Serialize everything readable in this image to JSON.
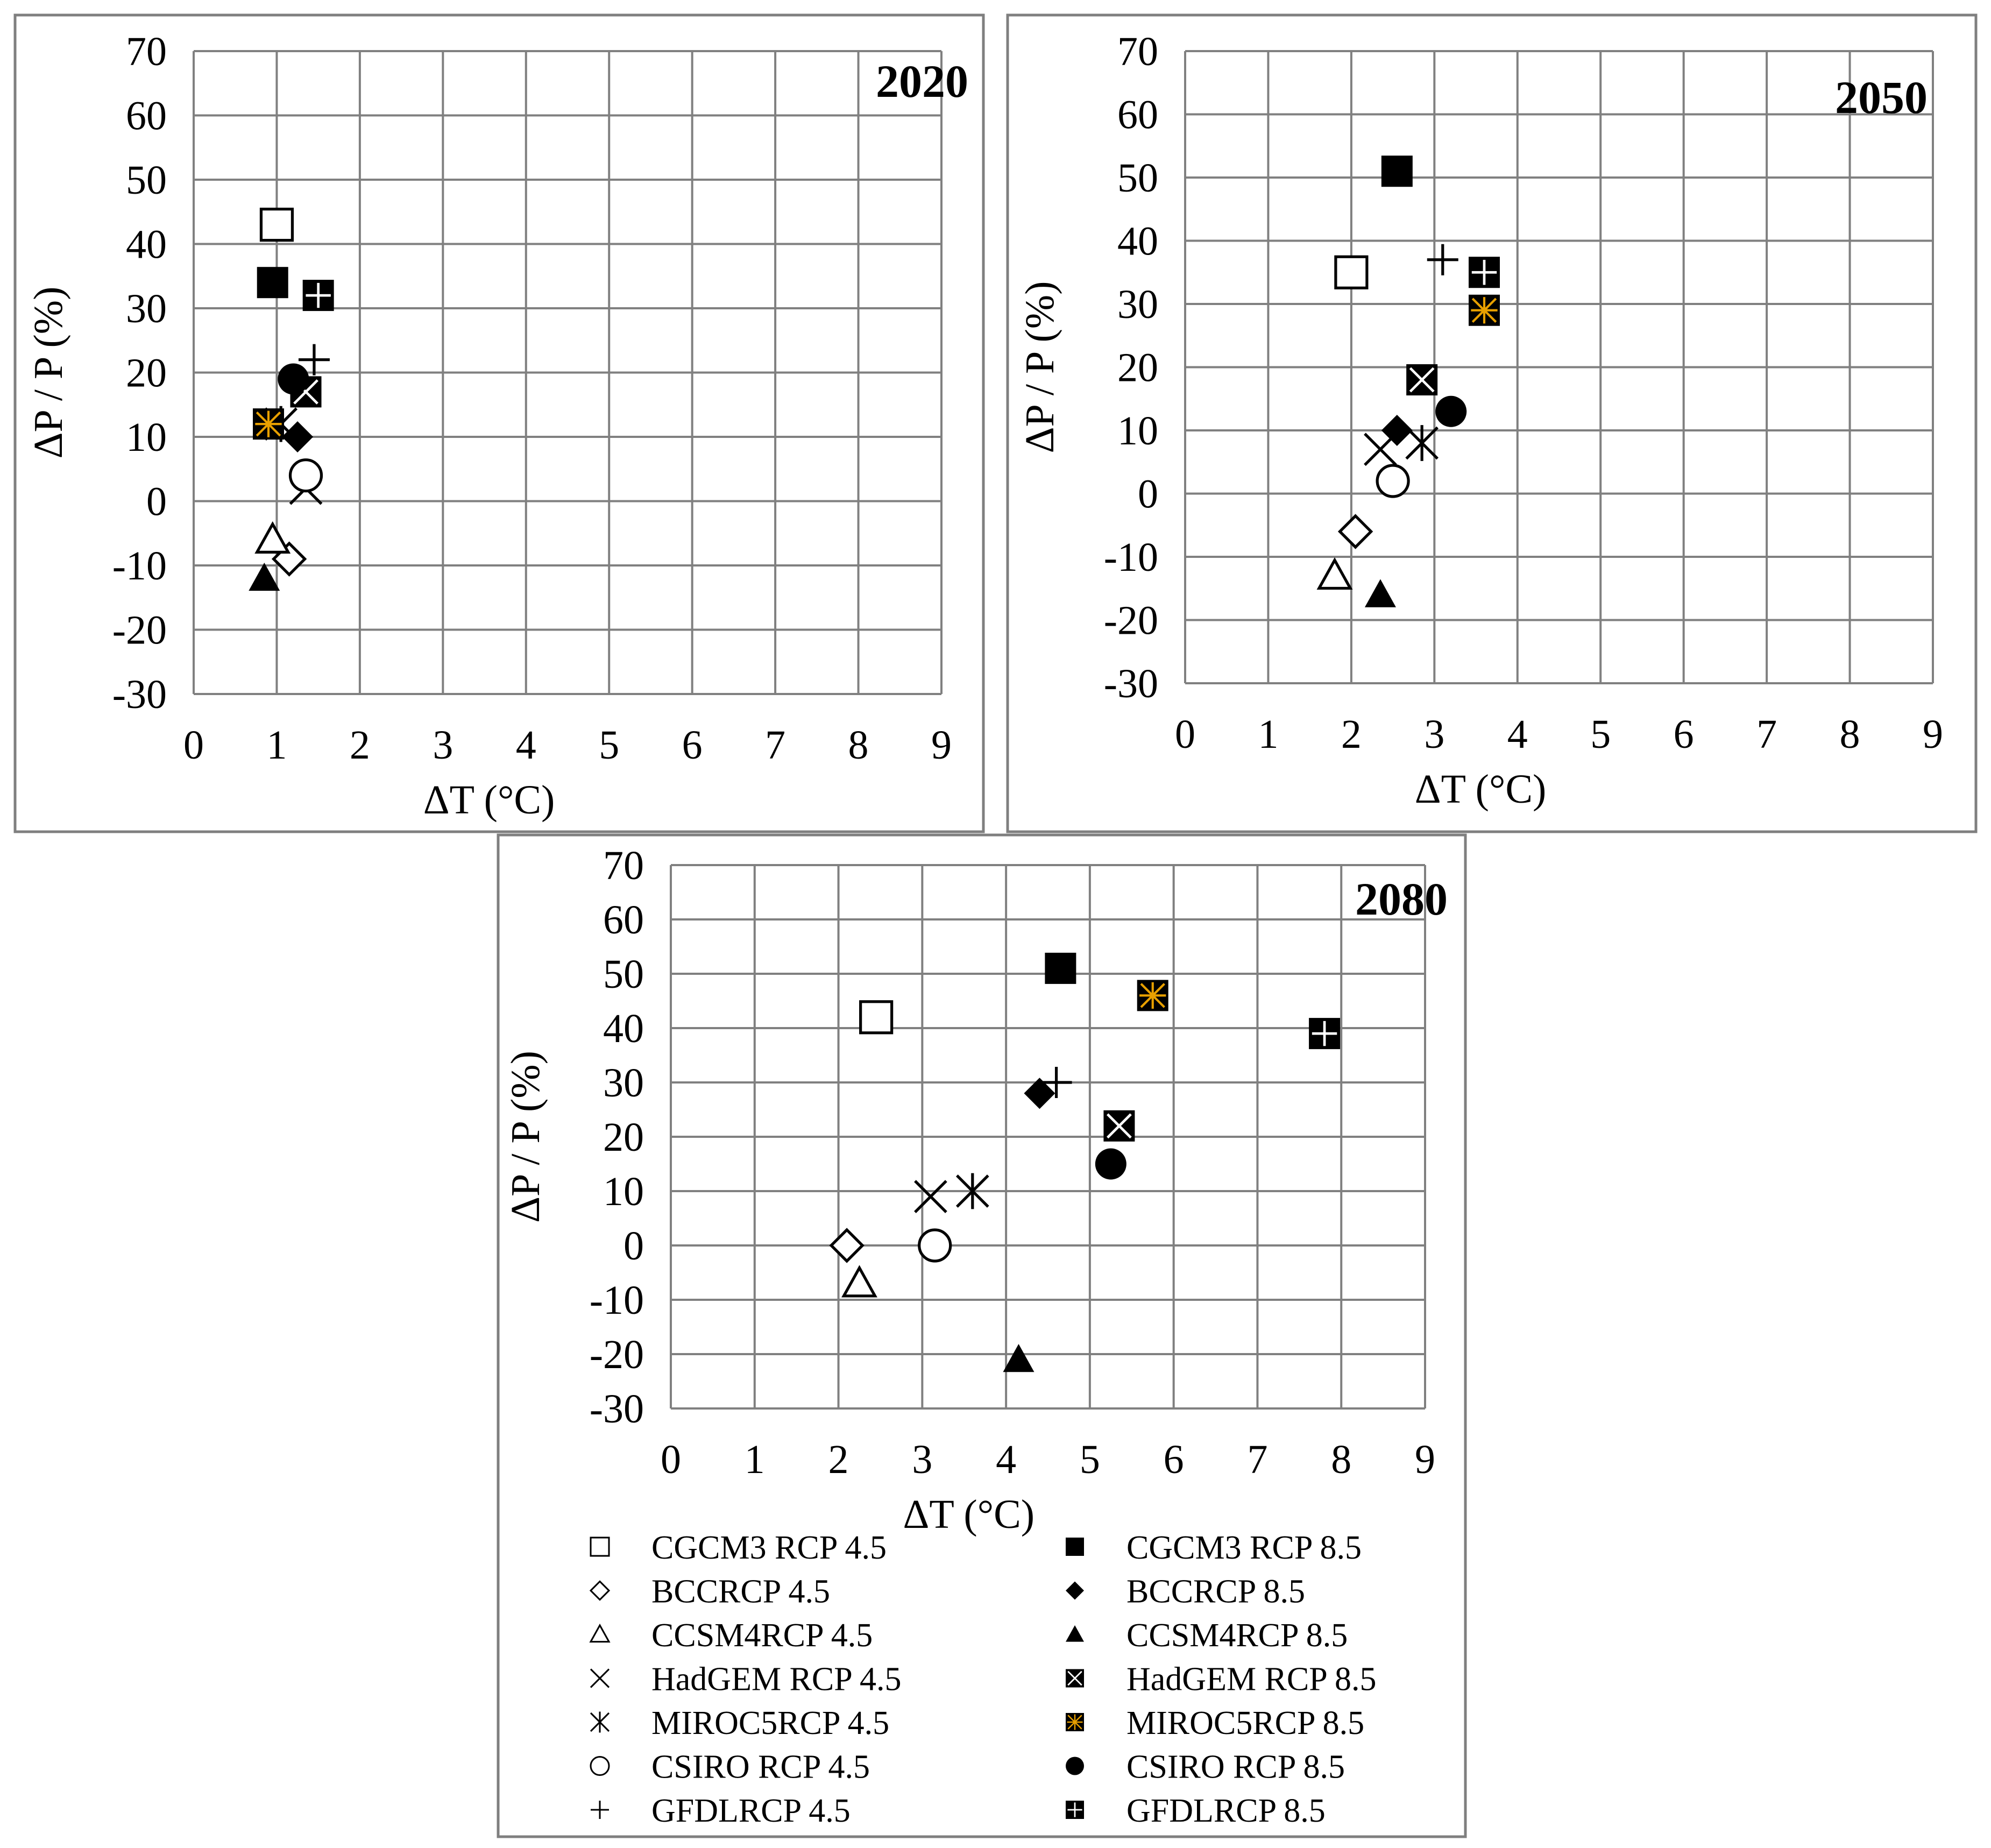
{
  "chart_data": [
    {
      "type": "scatter",
      "title": "2020",
      "xlabel": "ΔT (°C)",
      "ylabel": "ΔP / P (%)",
      "xlim": [
        0,
        9
      ],
      "ylim": [
        -30,
        70
      ],
      "xticks": [
        "0",
        "1",
        "2",
        "3",
        "4",
        "5",
        "6",
        "7",
        "8",
        "9"
      ],
      "yticks": [
        "70",
        "60",
        "50",
        "40",
        "30",
        "20",
        "10",
        "0",
        "-10",
        "-20",
        "-30"
      ],
      "grid": true,
      "series": [
        {
          "name": "CGCM3 RCP 4.5",
          "x": 1.0,
          "y": 43
        },
        {
          "name": "CGCM3 RCP 8.5",
          "x": 0.95,
          "y": 34
        },
        {
          "name": "BCCRCP 4.5",
          "x": 1.15,
          "y": -9
        },
        {
          "name": "BCCRCP 8.5",
          "x": 1.25,
          "y": 10
        },
        {
          "name": "CCSM4RCP 4.5",
          "x": 0.95,
          "y": -6
        },
        {
          "name": "CCSM4RCP 8.5",
          "x": 0.85,
          "y": -12
        },
        {
          "name": "HadGEM RCP 4.5",
          "x": 1.35,
          "y": 2
        },
        {
          "name": "HadGEM RCP 8.5",
          "x": 1.35,
          "y": 17
        },
        {
          "name": "MIROC5RCP 4.5",
          "x": 1.05,
          "y": 12
        },
        {
          "name": "MIROC5RCP 8.5",
          "x": 0.9,
          "y": 12
        },
        {
          "name": "CSIRO RCP 4.5",
          "x": 1.35,
          "y": 4
        },
        {
          "name": "CSIRO RCP 8.5",
          "x": 1.2,
          "y": 19
        },
        {
          "name": "GFDLRCP 4.5",
          "x": 1.45,
          "y": 22
        },
        {
          "name": "GFDLRCP 8.5",
          "x": 1.5,
          "y": 32
        }
      ]
    },
    {
      "type": "scatter",
      "title": "2050",
      "xlabel": "ΔT (°C)",
      "ylabel": "ΔP / P (%)",
      "xlim": [
        0,
        9
      ],
      "ylim": [
        -30,
        70
      ],
      "xticks": [
        "0",
        "1",
        "2",
        "3",
        "4",
        "5",
        "6",
        "7",
        "8",
        "9"
      ],
      "yticks": [
        "70",
        "60",
        "50",
        "40",
        "30",
        "20",
        "10",
        "0",
        "-10",
        "-20",
        "-30"
      ],
      "grid": true,
      "series": [
        {
          "name": "CGCM3 RCP 4.5",
          "x": 2.0,
          "y": 35
        },
        {
          "name": "CGCM3 RCP 8.5",
          "x": 2.55,
          "y": 51
        },
        {
          "name": "BCCRCP 4.5",
          "x": 2.05,
          "y": -6
        },
        {
          "name": "BCCRCP 8.5",
          "x": 2.55,
          "y": 10
        },
        {
          "name": "CCSM4RCP 4.5",
          "x": 1.8,
          "y": -13
        },
        {
          "name": "CCSM4RCP 8.5",
          "x": 2.35,
          "y": -16
        },
        {
          "name": "HadGEM RCP 4.5",
          "x": 2.35,
          "y": 7
        },
        {
          "name": "HadGEM RCP 8.5",
          "x": 2.85,
          "y": 18
        },
        {
          "name": "MIROC5RCP 4.5",
          "x": 2.85,
          "y": 8
        },
        {
          "name": "MIROC5RCP 8.5",
          "x": 3.6,
          "y": 29
        },
        {
          "name": "CSIRO RCP 4.5",
          "x": 2.5,
          "y": 2
        },
        {
          "name": "CSIRO RCP 8.5",
          "x": 3.2,
          "y": 13
        },
        {
          "name": "GFDLRCP 4.5",
          "x": 3.1,
          "y": 37
        },
        {
          "name": "GFDLRCP 8.5",
          "x": 3.6,
          "y": 35
        }
      ]
    },
    {
      "type": "scatter",
      "title": "2080",
      "xlabel": "ΔT (°C)",
      "ylabel": "ΔP / P (%)",
      "xlim": [
        0,
        9
      ],
      "ylim": [
        -30,
        70
      ],
      "xticks": [
        "0",
        "1",
        "2",
        "3",
        "4",
        "5",
        "6",
        "7",
        "8",
        "9"
      ],
      "yticks": [
        "70",
        "60",
        "50",
        "40",
        "30",
        "20",
        "10",
        "0",
        "-10",
        "-20",
        "-30"
      ],
      "grid": true,
      "series": [
        {
          "name": "CGCM3 RCP 4.5",
          "x": 2.45,
          "y": 42
        },
        {
          "name": "CGCM3 RCP 8.5",
          "x": 4.65,
          "y": 51
        },
        {
          "name": "BCCRCP 4.5",
          "x": 2.1,
          "y": 0
        },
        {
          "name": "BCCRCP 8.5",
          "x": 4.4,
          "y": 28
        },
        {
          "name": "CCSM4RCP 4.5",
          "x": 2.25,
          "y": -7
        },
        {
          "name": "CCSM4RCP 8.5",
          "x": 4.15,
          "y": -21
        },
        {
          "name": "HadGEM RCP 4.5",
          "x": 3.1,
          "y": 9
        },
        {
          "name": "HadGEM RCP 8.5",
          "x": 5.35,
          "y": 22
        },
        {
          "name": "MIROC5RCP 4.5",
          "x": 3.6,
          "y": 10
        },
        {
          "name": "MIROC5RCP 8.5",
          "x": 5.75,
          "y": 46
        },
        {
          "name": "CSIRO RCP 4.5",
          "x": 3.15,
          "y": 0
        },
        {
          "name": "CSIRO RCP 8.5",
          "x": 5.25,
          "y": 15
        },
        {
          "name": "GFDLRCP 4.5",
          "x": 4.6,
          "y": 30
        },
        {
          "name": "GFDLRCP 8.5",
          "x": 7.8,
          "y": 39
        }
      ]
    }
  ],
  "legend": {
    "placement": "bottom",
    "items": [
      {
        "label": "CGCM3 RCP 4.5",
        "marker": "square-open"
      },
      {
        "label": "CGCM3 RCP 8.5",
        "marker": "square-filled"
      },
      {
        "label": "BCCRCP 4.5",
        "marker": "diamond-open"
      },
      {
        "label": "BCCRCP 8.5",
        "marker": "diamond-filled"
      },
      {
        "label": "CCSM4RCP 4.5",
        "marker": "triangle-open"
      },
      {
        "label": "CCSM4RCP 8.5",
        "marker": "triangle-filled"
      },
      {
        "label": "HadGEM RCP 4.5",
        "marker": "x-cross"
      },
      {
        "label": "HadGEM RCP 8.5",
        "marker": "square-x-filled"
      },
      {
        "label": "MIROC5RCP 4.5",
        "marker": "asterisk"
      },
      {
        "label": "MIROC5RCP 8.5",
        "marker": "square-asterisk-orange"
      },
      {
        "label": "CSIRO RCP 4.5",
        "marker": "circle-open"
      },
      {
        "label": "CSIRO RCP 8.5",
        "marker": "circle-filled"
      },
      {
        "label": "GFDLRCP 4.5",
        "marker": "plus"
      },
      {
        "label": "GFDLRCP 8.5",
        "marker": "square-plus-filled"
      }
    ]
  },
  "colors": {
    "marker": "#000000",
    "grid": "#808080",
    "frame": "#7f7f7f",
    "miroc_accent": "#e8a000"
  }
}
